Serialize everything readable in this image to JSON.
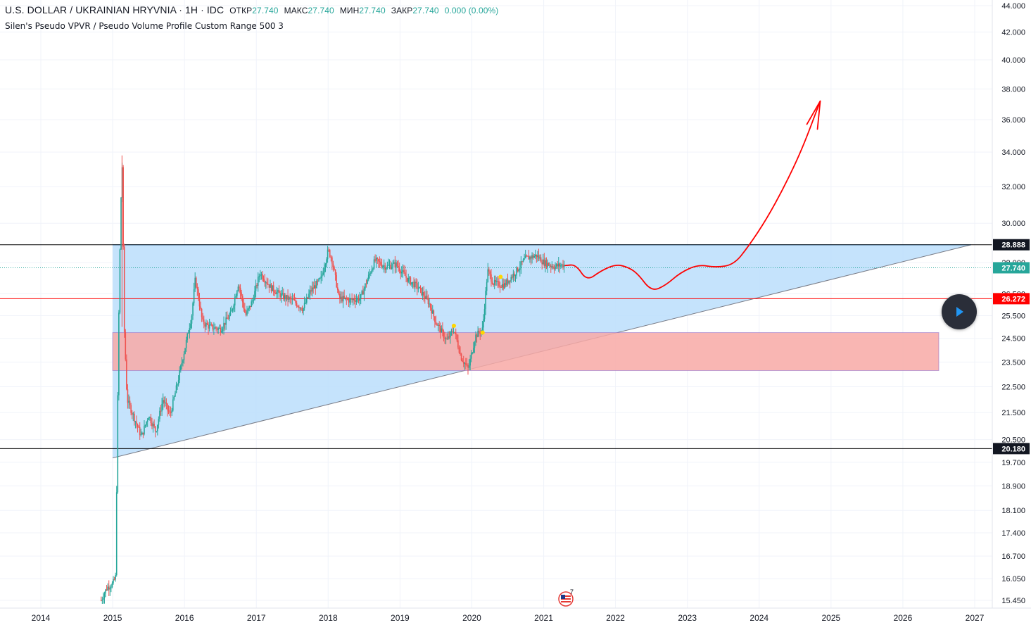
{
  "header": {
    "symbol": "U.S. DOLLAR / UKRAINIAN HRYVNIA · 1H · IDC",
    "open_label": "ОТКР",
    "open_value": "27.740",
    "high_label": "МАКС",
    "high_value": "27.740",
    "low_label": "МИН",
    "low_value": "27.740",
    "close_label": "ЗАКР",
    "close_value": "27.740",
    "change": "0.000 (0.00%)"
  },
  "indicator": "Silen's Pseudo VPVR / Pseudo Volume Profile Custom Range 500 3",
  "badge_count": "7",
  "colors": {
    "accent": "#26a69a",
    "triangle_fill": "#bbdefb",
    "triangle_stroke": "#2196f3",
    "zone_fill": "#f8a9a6",
    "zone_stroke": "#9575cd",
    "forecast": "#ff0000",
    "resistance": "#ff0000",
    "candle": "#26a69a",
    "candle_down": "#ef5350"
  },
  "chart_data": {
    "type": "candlestick",
    "xaxis_ticks": [
      "2014",
      "2015",
      "2016",
      "2017",
      "2018",
      "2019",
      "2020",
      "2021",
      "2022",
      "2023",
      "2024",
      "2025",
      "2026",
      "2027"
    ],
    "yaxis_ticks": [
      "44.000",
      "42.000",
      "40.000",
      "38.000",
      "36.000",
      "34.000",
      "32.000",
      "30.000",
      "28.000",
      "26.500",
      "25.500",
      "24.500",
      "23.500",
      "22.500",
      "21.500",
      "20.500",
      "19.700",
      "18.900",
      "18.100",
      "17.400",
      "16.700",
      "16.050",
      "15.450"
    ],
    "price_labels": [
      {
        "value": 28.888,
        "text": "28.888",
        "style": "black"
      },
      {
        "value": 27.74,
        "text": "27.740",
        "style": "teal"
      },
      {
        "value": 26.272,
        "text": "26.272",
        "style": "red"
      },
      {
        "value": 20.18,
        "text": "20.180",
        "style": "black"
      }
    ],
    "horizontal_lines": [
      {
        "value": 28.888,
        "color": "#000000",
        "style": "solid"
      },
      {
        "value": 27.74,
        "color": "#26a69a",
        "style": "dotted"
      },
      {
        "value": 26.272,
        "color": "#ff0000",
        "style": "solid"
      },
      {
        "value": 20.18,
        "color": "#000000",
        "style": "solid"
      }
    ],
    "triangle": [
      [
        2015.0,
        28.888
      ],
      [
        2026.95,
        28.888
      ],
      [
        2015.0,
        19.85
      ]
    ],
    "zone": {
      "x0": 2015.0,
      "x1": 2026.5,
      "y0": 23.15,
      "y1": 24.75
    },
    "price_path": [
      [
        2014.84,
        15.45
      ],
      [
        2014.92,
        15.8
      ],
      [
        2015.0,
        15.9
      ],
      [
        2015.04,
        16.1
      ],
      [
        2015.06,
        19.6
      ],
      [
        2015.09,
        26.5
      ],
      [
        2015.13,
        33.8
      ],
      [
        2015.16,
        25.0
      ],
      [
        2015.2,
        22.0
      ],
      [
        2015.3,
        21.3
      ],
      [
        2015.4,
        20.6
      ],
      [
        2015.5,
        21.4
      ],
      [
        2015.6,
        20.8
      ],
      [
        2015.7,
        22.0
      ],
      [
        2015.8,
        21.4
      ],
      [
        2015.9,
        22.6
      ],
      [
        2016.0,
        24.0
      ],
      [
        2016.1,
        25.5
      ],
      [
        2016.15,
        27.2
      ],
      [
        2016.25,
        25.2
      ],
      [
        2016.35,
        25.0
      ],
      [
        2016.5,
        24.9
      ],
      [
        2016.65,
        25.6
      ],
      [
        2016.75,
        27.0
      ],
      [
        2016.85,
        25.5
      ],
      [
        2016.95,
        26.2
      ],
      [
        2017.05,
        27.5
      ],
      [
        2017.2,
        26.8
      ],
      [
        2017.35,
        26.4
      ],
      [
        2017.5,
        26.2
      ],
      [
        2017.65,
        25.8
      ],
      [
        2017.75,
        26.6
      ],
      [
        2017.9,
        27.2
      ],
      [
        2018.0,
        28.6
      ],
      [
        2018.05,
        28.2
      ],
      [
        2018.15,
        26.3
      ],
      [
        2018.3,
        26.2
      ],
      [
        2018.45,
        26.3
      ],
      [
        2018.55,
        27.2
      ],
      [
        2018.65,
        28.1
      ],
      [
        2018.8,
        27.8
      ],
      [
        2018.95,
        27.9
      ],
      [
        2019.1,
        27.2
      ],
      [
        2019.25,
        26.8
      ],
      [
        2019.4,
        26.1
      ],
      [
        2019.5,
        25.2
      ],
      [
        2019.65,
        24.4
      ],
      [
        2019.75,
        24.9
      ],
      [
        2019.85,
        23.7
      ],
      [
        2019.95,
        23.2
      ],
      [
        2020.05,
        24.6
      ],
      [
        2020.15,
        24.9
      ],
      [
        2020.22,
        27.6
      ],
      [
        2020.3,
        27.0
      ],
      [
        2020.45,
        26.9
      ],
      [
        2020.6,
        27.5
      ],
      [
        2020.75,
        28.2
      ],
      [
        2020.9,
        28.35
      ],
      [
        2021.0,
        28.0
      ],
      [
        2021.15,
        27.8
      ],
      [
        2021.3,
        27.9
      ]
    ],
    "forecast_path": [
      [
        2021.3,
        27.85
      ],
      [
        2021.45,
        27.9
      ],
      [
        2021.6,
        27.1
      ],
      [
        2021.8,
        27.6
      ],
      [
        2022.0,
        27.9
      ],
      [
        2022.15,
        27.8
      ],
      [
        2022.3,
        27.5
      ],
      [
        2022.5,
        26.6
      ],
      [
        2022.7,
        26.9
      ],
      [
        2022.9,
        27.5
      ],
      [
        2023.15,
        27.9
      ],
      [
        2023.4,
        27.75
      ],
      [
        2023.65,
        27.9
      ],
      [
        2023.85,
        28.8
      ],
      [
        2024.1,
        30.2
      ],
      [
        2024.35,
        32.0
      ],
      [
        2024.6,
        34.2
      ],
      [
        2024.85,
        37.2
      ]
    ],
    "markers": [
      [
        2019.75,
        25.05
      ],
      [
        2020.15,
        24.75
      ],
      [
        2020.4,
        27.3
      ]
    ]
  }
}
